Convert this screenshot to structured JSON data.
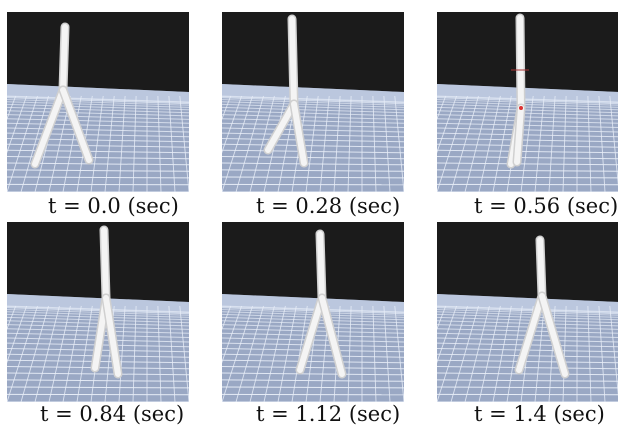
{
  "frames": [
    {
      "caption": "t = 0.0 (sec)"
    },
    {
      "caption": "t = 0.28 (sec)"
    },
    {
      "caption": "t = 0.56 (sec)"
    },
    {
      "caption": "t = 0.84 (sec)"
    },
    {
      "caption": "t = 1.12 (sec)"
    },
    {
      "caption": "t = 1.4 (sec)"
    }
  ],
  "colors": {
    "sky": "#1b1b1b",
    "floor": "#9aa8c4",
    "grid": "#e8eef8",
    "leg": "#f1f1f1"
  }
}
